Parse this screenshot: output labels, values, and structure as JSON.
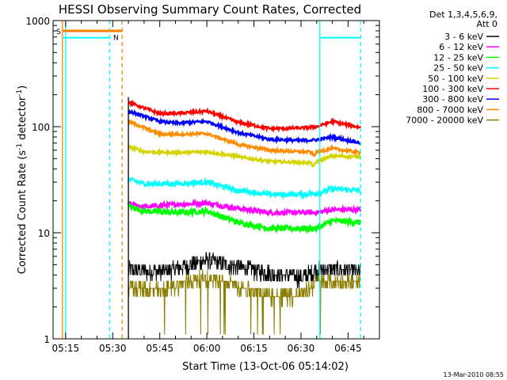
{
  "chart_data": {
    "type": "line",
    "title": "HESSI Observing Summary Count Rates, Corrected",
    "xlabel": "Start Time (13-Oct-06 05:14:02)",
    "ylabel_main": "Corrected Count Rate (s",
    "ylabel_sup1": "-1",
    "ylabel_mid": " detector",
    "ylabel_sup2": "-1",
    "ylabel_end": ")",
    "y_scale": "log",
    "ylim": [
      1,
      1000
    ],
    "xlim": [
      "05:11",
      "06:55"
    ],
    "x_ticks": [
      "05:15",
      "05:30",
      "05:45",
      "06:00",
      "06:15",
      "06:30",
      "06:45"
    ],
    "y_ticks": [
      "1",
      "10",
      "100",
      "1000"
    ],
    "grid": false,
    "legend_position": "outside-right",
    "legend_header": [
      "Det 1,3,4,5,6,9,",
      "Att 0"
    ],
    "data_start": "05:35",
    "data_end": "06:49",
    "series": [
      {
        "name": "3 - 6 keV",
        "color": "#000000",
        "noise": 0.18,
        "points": [
          [
            "05:35",
            4.5
          ],
          [
            "05:45",
            4.3
          ],
          [
            "05:55",
            5.0
          ],
          [
            "06:00",
            5.5
          ],
          [
            "06:10",
            4.8
          ],
          [
            "06:20",
            4.2
          ],
          [
            "06:30",
            3.8
          ],
          [
            "06:35",
            4.5
          ],
          [
            "06:40",
            4.6
          ],
          [
            "06:49",
            4.3
          ]
        ]
      },
      {
        "name": "6 - 12 keV",
        "color": "#ff00ff",
        "noise": 0.05,
        "points": [
          [
            "05:35",
            19
          ],
          [
            "05:40",
            17.5
          ],
          [
            "05:50",
            18.5
          ],
          [
            "06:00",
            19
          ],
          [
            "06:10",
            17
          ],
          [
            "06:20",
            15.5
          ],
          [
            "06:30",
            15.5
          ],
          [
            "06:35",
            15.5
          ],
          [
            "06:40",
            16.5
          ],
          [
            "06:49",
            16.5
          ]
        ]
      },
      {
        "name": "12 - 25 keV",
        "color": "#00ff00",
        "noise": 0.06,
        "points": [
          [
            "05:35",
            18
          ],
          [
            "05:40",
            16
          ],
          [
            "05:50",
            15.5
          ],
          [
            "06:00",
            16
          ],
          [
            "06:10",
            12.5
          ],
          [
            "06:20",
            11
          ],
          [
            "06:30",
            11
          ],
          [
            "06:35",
            11
          ],
          [
            "06:40",
            13
          ],
          [
            "06:49",
            12.5
          ]
        ]
      },
      {
        "name": "25 - 50 keV",
        "color": "#00ffff",
        "noise": 0.05,
        "points": [
          [
            "05:35",
            32
          ],
          [
            "05:40",
            29
          ],
          [
            "05:50",
            29
          ],
          [
            "06:00",
            30
          ],
          [
            "06:10",
            25
          ],
          [
            "06:20",
            23
          ],
          [
            "06:30",
            23
          ],
          [
            "06:35",
            23.5
          ],
          [
            "06:40",
            26
          ],
          [
            "06:49",
            25
          ]
        ]
      },
      {
        "name": "50 - 100 keV",
        "color": "#d4d400",
        "noise": 0.03,
        "points": [
          [
            "05:35",
            65
          ],
          [
            "05:40",
            58
          ],
          [
            "05:50",
            57
          ],
          [
            "06:00",
            58
          ],
          [
            "06:10",
            52
          ],
          [
            "06:20",
            47
          ],
          [
            "06:30",
            46
          ],
          [
            "06:33",
            46
          ],
          [
            "06:34",
            42
          ],
          [
            "06:35",
            47
          ],
          [
            "06:40",
            53
          ],
          [
            "06:49",
            52
          ]
        ]
      },
      {
        "name": "100 - 300 keV",
        "color": "#ff0000",
        "noise": 0.03,
        "points": [
          [
            "05:35",
            170
          ],
          [
            "05:40",
            150
          ],
          [
            "05:45",
            133
          ],
          [
            "05:50",
            133
          ],
          [
            "06:00",
            140
          ],
          [
            "06:10",
            110
          ],
          [
            "06:20",
            96
          ],
          [
            "06:30",
            97
          ],
          [
            "06:35",
            100
          ],
          [
            "06:40",
            112
          ],
          [
            "06:49",
            98
          ]
        ]
      },
      {
        "name": "300 - 800 keV",
        "color": "#0000ff",
        "noise": 0.03,
        "points": [
          [
            "05:35",
            140
          ],
          [
            "05:40",
            125
          ],
          [
            "05:45",
            112
          ],
          [
            "05:50",
            108
          ],
          [
            "06:00",
            112
          ],
          [
            "06:10",
            88
          ],
          [
            "06:20",
            76
          ],
          [
            "06:30",
            74
          ],
          [
            "06:35",
            75
          ],
          [
            "06:40",
            80
          ],
          [
            "06:49",
            70
          ]
        ]
      },
      {
        "name": "800 - 7000 keV",
        "color": "#ff8c00",
        "noise": 0.03,
        "points": [
          [
            "05:35",
            112
          ],
          [
            "05:40",
            98
          ],
          [
            "05:45",
            85
          ],
          [
            "05:50",
            85
          ],
          [
            "06:00",
            86
          ],
          [
            "06:10",
            68
          ],
          [
            "06:20",
            60
          ],
          [
            "06:30",
            58
          ],
          [
            "06:33",
            58
          ],
          [
            "06:34",
            53
          ],
          [
            "06:35",
            58
          ],
          [
            "06:40",
            62
          ],
          [
            "06:49",
            57
          ]
        ]
      },
      {
        "name": "7000 - 20000 keV",
        "color": "#8b7d00",
        "noise": 0.16,
        "points": [
          [
            "05:35",
            3.2
          ],
          [
            "05:45",
            2.8
          ],
          [
            "05:55",
            3.6
          ],
          [
            "06:00",
            3.8
          ],
          [
            "06:10",
            3.2
          ],
          [
            "06:20",
            2.6
          ],
          [
            "06:30",
            2.6
          ],
          [
            "06:35",
            3.4
          ],
          [
            "06:40",
            3.5
          ],
          [
            "06:49",
            3.3
          ]
        ]
      }
    ],
    "markers": [
      {
        "kind": "orange-step",
        "label": "S",
        "color": "#ff8000",
        "x_high_end": "05:33",
        "high": 800,
        "x_low": "05:14",
        "low": 1
      },
      {
        "kind": "cyan-step",
        "label": "N",
        "color": "#00ffff",
        "x_low_start": "05:14",
        "x_high_start": "05:14",
        "high": 690,
        "x_drop": "05:29"
      },
      {
        "kind": "cyan-step-right",
        "color": "#00ffff",
        "x": "06:36",
        "high": 690,
        "x_end": "06:49"
      }
    ],
    "vlines": [
      {
        "x": "05:14",
        "color": "#ff8000",
        "style": "solid"
      },
      {
        "x": "05:15",
        "color": "#00ffff",
        "style": "solid"
      },
      {
        "x": "05:29",
        "color": "#00ffff",
        "style": "dashed"
      },
      {
        "x": "05:33",
        "color": "#ff8000",
        "style": "dashed"
      },
      {
        "x": "05:35",
        "color": "#000000",
        "style": "solid"
      },
      {
        "x": "06:36",
        "color": "#00ffff",
        "style": "solid"
      },
      {
        "x": "06:49",
        "color": "#00ffff",
        "style": "dashed"
      }
    ],
    "footer": "13-Mar-2010 08:55"
  }
}
